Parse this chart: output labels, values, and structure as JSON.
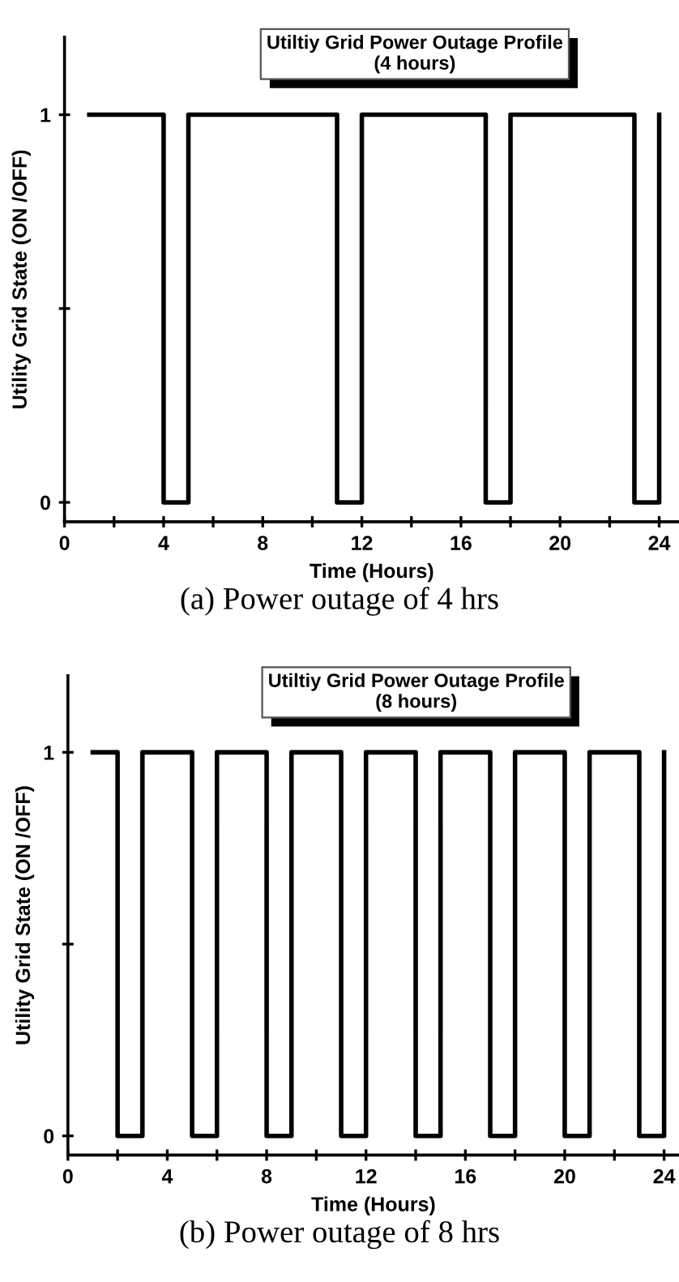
{
  "chart_data": [
    {
      "type": "step",
      "title": "Utiltiy Grid Power Outage Profile\n(4 hours)",
      "xlabel": "Time (Hours)",
      "ylabel": "Utility Grid State (ON /OFF)",
      "x": [
        1,
        4,
        5,
        11,
        12,
        17,
        18,
        23,
        24
      ],
      "values": [
        1,
        0,
        1,
        0,
        1,
        0,
        1,
        0,
        1
      ],
      "color": "#000000",
      "xlim": [
        0,
        24.8
      ],
      "ylim": [
        -0.05,
        1.2
      ],
      "xticks": [
        0,
        {
          "value": 2,
          "label": null
        },
        4,
        {
          "value": 6,
          "label": null
        },
        8,
        {
          "value": 10,
          "label": null
        },
        12,
        {
          "value": 14,
          "label": null
        },
        16,
        {
          "value": 18,
          "label": null
        },
        20,
        {
          "value": 22,
          "label": null
        },
        24
      ],
      "yticks": [
        0,
        {
          "value": 0.5,
          "label": null
        },
        1
      ],
      "annotations": [
        "(a) Power outage of 4 hrs"
      ]
    },
    {
      "type": "step",
      "title": "Utiltiy Grid Power Outage Profile\n(8 hours)",
      "xlabel": "Time (Hours)",
      "ylabel": "Utility Grid State (ON /OFF)",
      "x": [
        1,
        2,
        3,
        5,
        6,
        8,
        9,
        11,
        12,
        14,
        15,
        17,
        18,
        20,
        21,
        23,
        24
      ],
      "values": [
        1,
        0,
        1,
        0,
        1,
        0,
        1,
        0,
        1,
        0,
        1,
        0,
        1,
        0,
        1,
        0,
        1
      ],
      "color": "#000000",
      "xlim": [
        0,
        24.6
      ],
      "ylim": [
        -0.05,
        1.2
      ],
      "xticks": [
        0,
        {
          "value": 2,
          "label": null
        },
        4,
        {
          "value": 6,
          "label": null
        },
        8,
        {
          "value": 10,
          "label": null
        },
        12,
        {
          "value": 14,
          "label": null
        },
        16,
        {
          "value": 18,
          "label": null
        },
        20,
        {
          "value": 22,
          "label": null
        },
        24
      ],
      "yticks": [
        0,
        {
          "value": 0.5,
          "label": null
        },
        1
      ],
      "annotations": [
        "(b) Power outage of 8 hrs"
      ]
    }
  ]
}
